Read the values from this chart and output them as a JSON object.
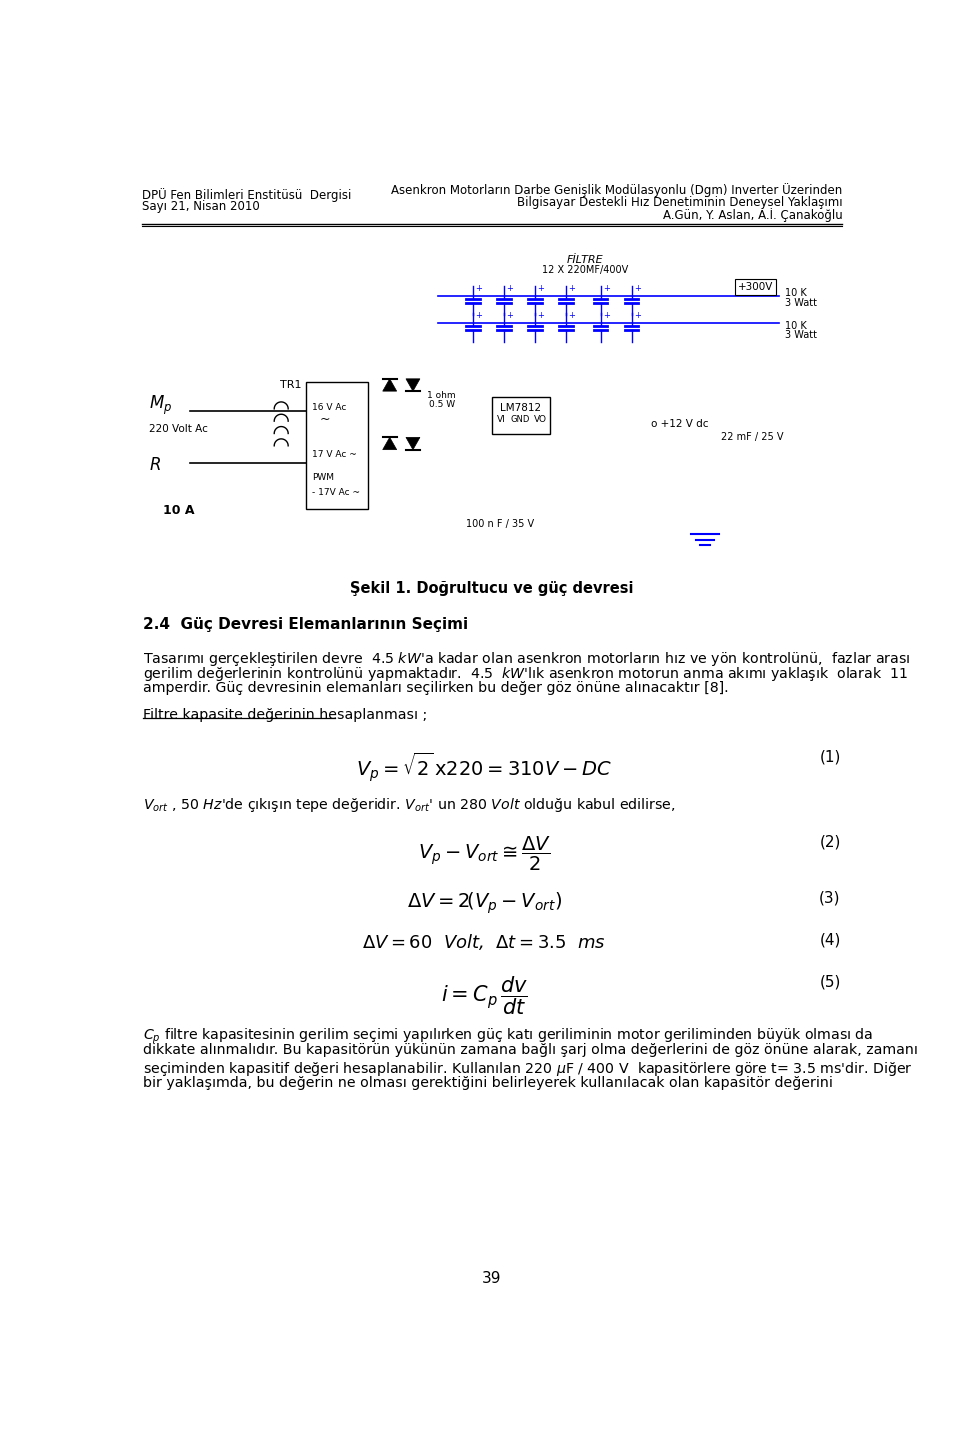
{
  "header_left_line1": "DPÜ Fen Bilimleri Enstitüsü  Dergisi",
  "header_left_line2": "Sayı 21, Nisan 2010",
  "header_right_line1": "Asenkron Motorların Darbe Genişlik Modülasyonlu (Dgm) Inverter Üzerinden",
  "header_right_line2": "Bilgisayar Destekli Hız Denetiminin Deneysel Yaklaşımı",
  "header_right_line3": "A.Gün, Y. Aslan, A.İ. Çanakoğlu",
  "section_title": "2.4  Güç Devresi Elemanlarının Seçimi",
  "filtre_label": "Filtre kapasite değerinin hesaplanması ;",
  "eq1_label": "(1)",
  "eq2_label": "(2)",
  "eq3_label": "(3)",
  "eq4_label": "(4)",
  "eq5_label": "(5)",
  "page_number": "39",
  "fig_caption": "Şekil 1. Doğrultucu ve güç devresi",
  "background_color": "#ffffff",
  "text_color": "#000000"
}
